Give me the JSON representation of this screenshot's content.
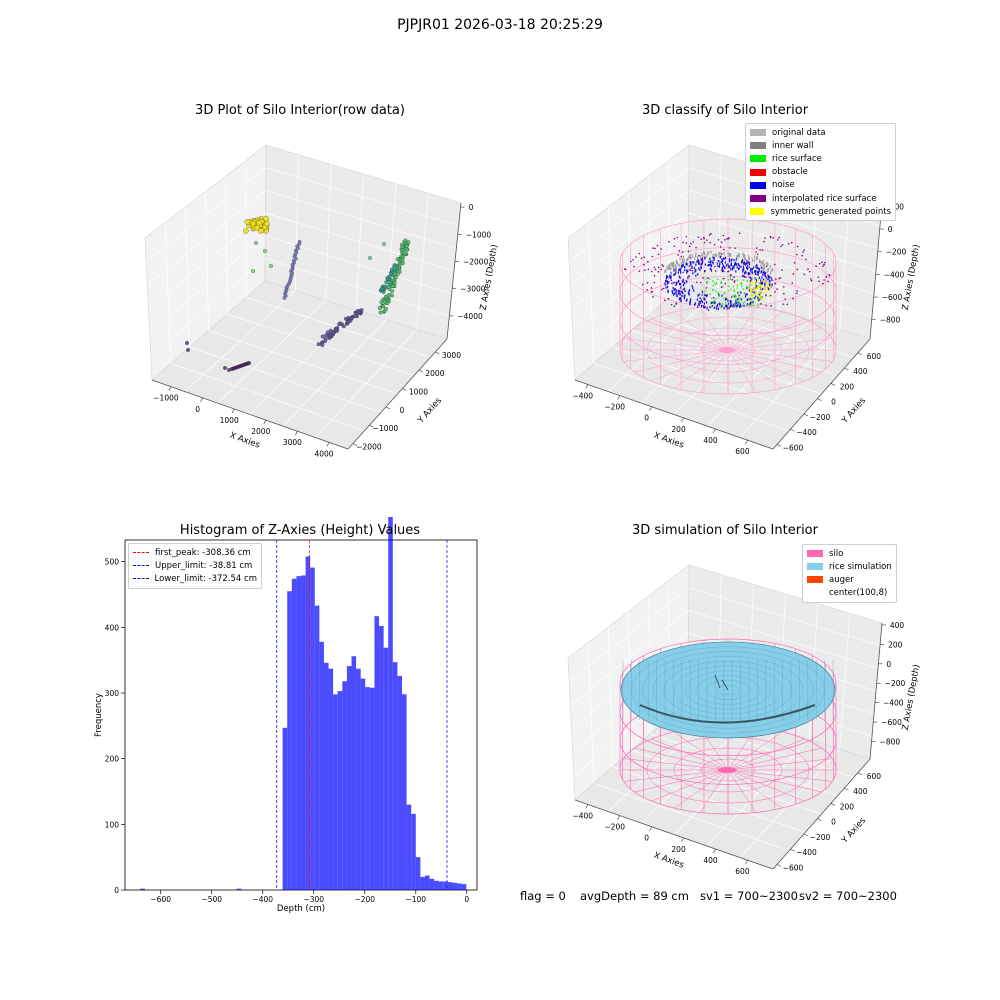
{
  "suptitle": "PJPJR01 2026-03-18 20:25:29",
  "panel1": {
    "title": "3D Plot of Silo Interior(row data)",
    "xlabel": "X Axies",
    "ylabel": "Y Axies",
    "zlabel": "Z Axies (Depth)",
    "xticks": [
      "−1000",
      "0",
      "1000",
      "2000",
      "3000",
      "4000"
    ],
    "yticks": [
      "−2000",
      "−1000",
      "0",
      "1000",
      "2000",
      "3000"
    ],
    "zticks": [
      "0",
      "−1000",
      "−2000",
      "−3000",
      "−4000"
    ]
  },
  "panel2": {
    "title": "3D classify of Silo Interior",
    "xlabel": "X Axies",
    "ylabel": "Y Axies",
    "zlabel": "Z Axies (Depth)",
    "xticks": [
      "−400",
      "−200",
      "0",
      "200",
      "400",
      "600"
    ],
    "yticks": [
      "−600",
      "−400",
      "−200",
      "0",
      "200",
      "400",
      "600"
    ],
    "zticks": [
      "200",
      "0",
      "−200",
      "−400",
      "−600",
      "−800"
    ],
    "legend": [
      {
        "label": "original data",
        "color": "#b3b3b3"
      },
      {
        "label": "inner wall",
        "color": "#808080"
      },
      {
        "label": "rice surface",
        "color": "#00ee00"
      },
      {
        "label": "obstacle",
        "color": "#ee0000"
      },
      {
        "label": "noise",
        "color": "#0000ee"
      },
      {
        "label": "interpolated rice surface",
        "color": "#800080"
      },
      {
        "label": "symmetric generated points",
        "color": "#ffff00"
      }
    ]
  },
  "panel3": {
    "title": "Histogram of Z-Axies (Height) Values",
    "xlabel": "Depth (cm)",
    "ylabel": "Frequency",
    "legend": [
      {
        "label": "first_peak: -308.36 cm",
        "color": "#ff0000"
      },
      {
        "label": "Upper_limit: -38.81 cm",
        "color": "#0000ff"
      },
      {
        "label": "Lower_limit: -372.54 cm",
        "color": "#0000ff"
      }
    ]
  },
  "panel4": {
    "title": "3D simulation of Silo Interior",
    "xlabel": "X Axies",
    "ylabel": "Y Axies",
    "zlabel": "Z Axies (Depth)",
    "xticks": [
      "−400",
      "−200",
      "0",
      "200",
      "400",
      "600"
    ],
    "yticks": [
      "−600",
      "−400",
      "−200",
      "0",
      "200",
      "400",
      "600"
    ],
    "zticks": [
      "400",
      "200",
      "0",
      "−200",
      "−400",
      "−600",
      "−800"
    ],
    "legend": [
      {
        "label": "silo",
        "color": "#ff69b4"
      },
      {
        "label": "rice simulation",
        "color": "#87ceeb"
      },
      {
        "label": "auger",
        "color": "#ff4500"
      },
      {
        "label": "center(100,8)",
        "color": "#ffffff"
      }
    ]
  },
  "status": {
    "flag": "flag = 0",
    "avg_depth": "avgDepth = 89 cm",
    "sv1": "sv1 = 700~2300",
    "sv2": "sv2 = 700~2300"
  },
  "chart_data": [
    {
      "type": "scatter",
      "title": "3D Plot of Silo Interior(row data)",
      "xlabel": "X Axies",
      "ylabel": "Y Axies",
      "zlabel": "Z Axies (Depth)",
      "xlim": [
        -1500,
        4500
      ],
      "ylim": [
        -2500,
        3500
      ],
      "zlim": [
        -4800,
        300
      ]
    },
    {
      "type": "scatter",
      "title": "3D classify of Silo Interior",
      "xlim": [
        -500,
        700
      ],
      "ylim": [
        -650,
        650
      ],
      "zlim": [
        -900,
        300
      ],
      "series": [
        {
          "name": "original data"
        },
        {
          "name": "inner wall"
        },
        {
          "name": "rice surface"
        },
        {
          "name": "obstacle"
        },
        {
          "name": "noise"
        },
        {
          "name": "interpolated rice surface"
        },
        {
          "name": "symmetric generated points"
        }
      ]
    },
    {
      "type": "bar",
      "title": "Histogram of Z-Axies (Height) Values",
      "xlabel": "Depth (cm)",
      "ylabel": "Frequency",
      "xlim": [
        -670,
        20
      ],
      "ylim": [
        0,
        533
      ],
      "xticks": [
        -600,
        -500,
        -400,
        -300,
        -200,
        -100,
        0
      ],
      "yticks": [
        0,
        100,
        200,
        300,
        400,
        500
      ],
      "bin_width": 9.0,
      "bin_starts": [
        -640,
        -451,
        -361,
        -352,
        -343,
        -334,
        -325,
        -316,
        -307,
        -298,
        -289,
        -280,
        -271,
        -262,
        -253,
        -244,
        -235,
        -226,
        -217,
        -208,
        -199,
        -190,
        -181,
        -172,
        -163,
        -154,
        -145,
        -136,
        -127,
        -118,
        -109,
        -100,
        -91,
        -82,
        -73,
        -64,
        -55,
        -46,
        -37,
        -28,
        -19,
        -10
      ],
      "values": [
        2,
        2,
        247,
        455,
        474,
        478,
        479,
        508,
        491,
        433,
        378,
        346,
        337,
        298,
        303,
        318,
        341,
        356,
        337,
        322,
        309,
        308,
        417,
        402,
        369,
        568,
        347,
        326,
        298,
        130,
        116,
        50,
        20,
        22,
        17,
        14,
        13,
        13,
        12,
        11,
        10,
        9
      ],
      "vlines": [
        {
          "label": "first_peak: -308.36 cm",
          "x": -308.36,
          "color": "#ff0000"
        },
        {
          "label": "Upper_limit: -38.81 cm",
          "x": -38.81,
          "color": "#0000ff"
        },
        {
          "label": "Lower_limit: -372.54 cm",
          "x": -372.54,
          "color": "#0000ff"
        }
      ]
    },
    {
      "type": "scatter",
      "title": "3D simulation of Silo Interior",
      "xlim": [
        -500,
        700
      ],
      "ylim": [
        -650,
        650
      ],
      "zlim": [
        -900,
        500
      ],
      "series": [
        {
          "name": "silo"
        },
        {
          "name": "rice simulation"
        },
        {
          "name": "auger"
        },
        {
          "name": "center(100,8)"
        }
      ]
    }
  ]
}
